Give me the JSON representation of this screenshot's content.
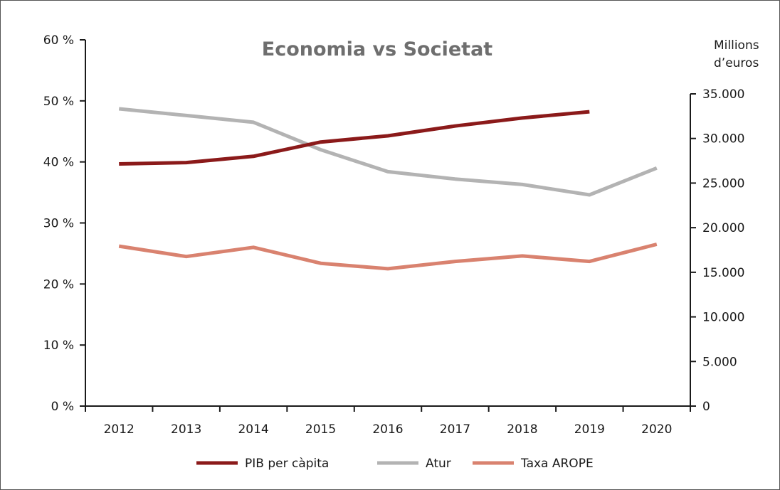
{
  "chart_data": {
    "type": "line",
    "title": "Economia vs Societat",
    "categories": [
      "2012",
      "2013",
      "2014",
      "2015",
      "2016",
      "2017",
      "2018",
      "2019",
      "2020"
    ],
    "y_left": {
      "label": "",
      "ylim": [
        0,
        60
      ],
      "ticks": [
        0,
        10,
        20,
        30,
        40,
        50,
        60
      ],
      "tick_labels": [
        "0 %",
        "10 %",
        "20 %",
        "30 %",
        "40 %",
        "50 %",
        "60 %"
      ]
    },
    "y_right": {
      "label_line1": "Millions",
      "label_line2": "d’euros",
      "ylim": [
        0,
        35000
      ],
      "ticks": [
        0,
        5000,
        10000,
        15000,
        20000,
        25000,
        30000,
        35000
      ],
      "tick_labels": [
        "0",
        "5.000",
        "10.000",
        "15.000",
        "20.000",
        "25.000",
        "30.000",
        "35.000"
      ]
    },
    "series": [
      {
        "name": "PIB per càpita",
        "axis": "right",
        "color": "#8b1a1a",
        "values": [
          27150,
          27300,
          28000,
          29600,
          30300,
          31400,
          32300,
          33000,
          null
        ]
      },
      {
        "name": "Atur",
        "axis": "left",
        "color": "#b3b3b3",
        "values": [
          48.7,
          47.6,
          46.5,
          42.0,
          38.4,
          37.2,
          36.3,
          34.6,
          39.0
        ]
      },
      {
        "name": "Taxa AROPE",
        "axis": "left",
        "color": "#d9826f",
        "values": [
          26.2,
          24.5,
          26.0,
          23.4,
          22.5,
          23.7,
          24.6,
          23.7,
          26.5
        ]
      }
    ],
    "legend_position": "bottom-center",
    "grid": false
  }
}
